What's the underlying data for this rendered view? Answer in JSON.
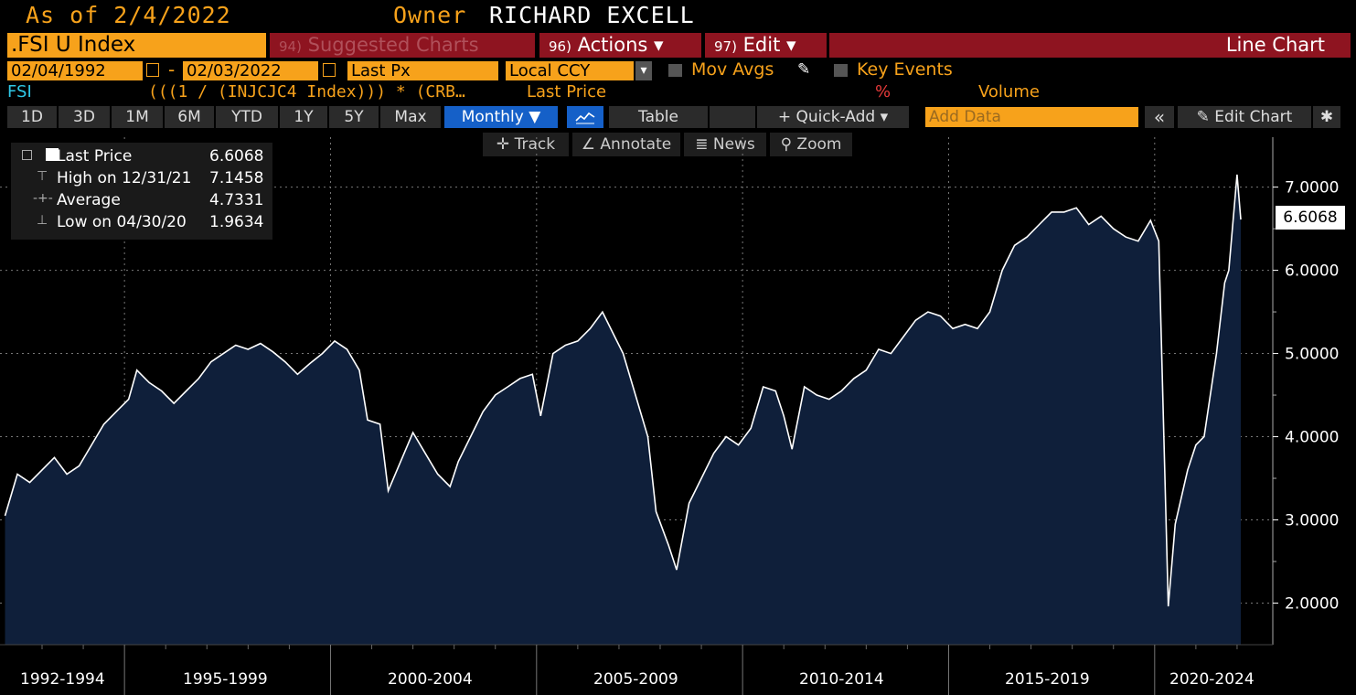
{
  "header": {
    "as_of": "As of 2/4/2022",
    "owner_label": "Owner",
    "owner_name": "RICHARD EXCELL"
  },
  "command_bar": {
    "ticker": ".FSI U Index",
    "suggested_num": "94)",
    "suggested_label": "Suggested Charts",
    "actions_num": "96)",
    "actions_label": "Actions ▾",
    "edit_num": "97)",
    "edit_label": "Edit ▾",
    "chart_type": "Line Chart"
  },
  "settings_row": {
    "start_date": "02/04/1992",
    "separator": "-",
    "end_date": "02/03/2022",
    "field": "Last Px",
    "currency": "Local CCY",
    "currency_dropdown": "▾",
    "mov_avgs": "Mov Avgs",
    "key_events": "Key Events"
  },
  "legend_row": {
    "security": "FSI",
    "formula": "(((1 / (INJCJC4 Index))) * (CRB…",
    "field": "Last Price",
    "pct": "%",
    "volume": "Volume"
  },
  "toolbar": {
    "periods": [
      "1D",
      "3D",
      "1M",
      "6M",
      "YTD",
      "1Y",
      "5Y",
      "Max"
    ],
    "frequency": "Monthly ▼",
    "table": "Table",
    "quick_add": "+ Quick-Add ▾",
    "add_data_placeholder": "Add Data",
    "collapse": "«",
    "edit_chart": "✎ Edit Chart",
    "settings": "✱"
  },
  "tools": {
    "track": "✛ Track",
    "annotate": "∠ Annotate",
    "news": "≣ News",
    "zoom": "⚲ Zoom"
  },
  "stats": {
    "last_label": "Last Price",
    "last_value": "6.6068",
    "high_label": "High on 12/31/21",
    "high_value": "7.1458",
    "avg_label": "Average",
    "avg_value": "4.7331",
    "low_label": "Low on 04/30/20",
    "low_value": "1.9634"
  },
  "colors": {
    "accent_orange": "#f7a21b",
    "bar_red": "#8e1420",
    "area_fill": "#0f1f3a",
    "line": "#ffffff"
  },
  "chart_data": {
    "type": "area",
    "y_range": [
      1.5,
      7.6
    ],
    "y_ticks": [
      "7.0000",
      "6.0000",
      "5.0000",
      "4.0000",
      "3.0000",
      "2.0000"
    ],
    "last_value_tag": "6.6068",
    "x_period_labels": [
      "1992-1994",
      "1995-1999",
      "2000-2004",
      "2005-2009",
      "2010-2014",
      "2015-2019",
      "2020-2024"
    ],
    "x_range": [
      1992.09,
      2022.09
    ],
    "grid": true,
    "series": [
      {
        "points": [
          [
            1992.1,
            3.05
          ],
          [
            1992.4,
            3.55
          ],
          [
            1992.7,
            3.45
          ],
          [
            1993.0,
            3.6
          ],
          [
            1993.3,
            3.75
          ],
          [
            1993.6,
            3.55
          ],
          [
            1993.9,
            3.65
          ],
          [
            1994.2,
            3.9
          ],
          [
            1994.5,
            4.15
          ],
          [
            1994.8,
            4.3
          ],
          [
            1995.1,
            4.45
          ],
          [
            1995.3,
            4.8
          ],
          [
            1995.6,
            4.65
          ],
          [
            1995.9,
            4.55
          ],
          [
            1996.2,
            4.4
          ],
          [
            1996.5,
            4.55
          ],
          [
            1996.8,
            4.7
          ],
          [
            1997.1,
            4.9
          ],
          [
            1997.4,
            5.0
          ],
          [
            1997.7,
            5.1
          ],
          [
            1998.0,
            5.05
          ],
          [
            1998.3,
            5.12
          ],
          [
            1998.6,
            5.02
          ],
          [
            1998.9,
            4.9
          ],
          [
            1999.2,
            4.75
          ],
          [
            1999.5,
            4.88
          ],
          [
            1999.8,
            5.0
          ],
          [
            2000.1,
            5.15
          ],
          [
            2000.4,
            5.05
          ],
          [
            2000.7,
            4.8
          ],
          [
            2000.9,
            4.2
          ],
          [
            2001.2,
            4.15
          ],
          [
            2001.4,
            3.35
          ],
          [
            2001.7,
            3.7
          ],
          [
            2002.0,
            4.05
          ],
          [
            2002.3,
            3.8
          ],
          [
            2002.6,
            3.55
          ],
          [
            2002.9,
            3.4
          ],
          [
            2003.1,
            3.7
          ],
          [
            2003.4,
            4.0
          ],
          [
            2003.7,
            4.3
          ],
          [
            2004.0,
            4.5
          ],
          [
            2004.3,
            4.6
          ],
          [
            2004.6,
            4.7
          ],
          [
            2004.9,
            4.75
          ],
          [
            2005.1,
            4.25
          ],
          [
            2005.4,
            5.0
          ],
          [
            2005.7,
            5.1
          ],
          [
            2006.0,
            5.15
          ],
          [
            2006.3,
            5.3
          ],
          [
            2006.6,
            5.5
          ],
          [
            2006.9,
            5.2
          ],
          [
            2007.1,
            5.0
          ],
          [
            2007.4,
            4.5
          ],
          [
            2007.7,
            4.0
          ],
          [
            2007.9,
            3.1
          ],
          [
            2008.2,
            2.7
          ],
          [
            2008.4,
            2.4
          ],
          [
            2008.7,
            3.2
          ],
          [
            2009.0,
            3.5
          ],
          [
            2009.3,
            3.8
          ],
          [
            2009.6,
            4.0
          ],
          [
            2009.9,
            3.9
          ],
          [
            2010.2,
            4.1
          ],
          [
            2010.5,
            4.6
          ],
          [
            2010.8,
            4.55
          ],
          [
            2011.0,
            4.25
          ],
          [
            2011.2,
            3.85
          ],
          [
            2011.5,
            4.6
          ],
          [
            2011.8,
            4.5
          ],
          [
            2012.1,
            4.45
          ],
          [
            2012.4,
            4.55
          ],
          [
            2012.7,
            4.7
          ],
          [
            2013.0,
            4.8
          ],
          [
            2013.3,
            5.05
          ],
          [
            2013.6,
            5.0
          ],
          [
            2013.9,
            5.2
          ],
          [
            2014.2,
            5.4
          ],
          [
            2014.5,
            5.5
          ],
          [
            2014.8,
            5.45
          ],
          [
            2015.1,
            5.3
          ],
          [
            2015.4,
            5.35
          ],
          [
            2015.7,
            5.3
          ],
          [
            2016.0,
            5.5
          ],
          [
            2016.3,
            6.0
          ],
          [
            2016.6,
            6.3
          ],
          [
            2016.9,
            6.4
          ],
          [
            2017.2,
            6.55
          ],
          [
            2017.5,
            6.7
          ],
          [
            2017.8,
            6.7
          ],
          [
            2018.1,
            6.75
          ],
          [
            2018.4,
            6.55
          ],
          [
            2018.7,
            6.65
          ],
          [
            2019.0,
            6.5
          ],
          [
            2019.3,
            6.4
          ],
          [
            2019.6,
            6.35
          ],
          [
            2019.9,
            6.6
          ],
          [
            2020.1,
            6.35
          ],
          [
            2020.33,
            1.96
          ],
          [
            2020.5,
            2.95
          ],
          [
            2020.8,
            3.6
          ],
          [
            2021.0,
            3.9
          ],
          [
            2021.2,
            4.0
          ],
          [
            2021.5,
            5.0
          ],
          [
            2021.7,
            5.85
          ],
          [
            2021.8,
            6.0
          ],
          [
            2022.0,
            7.15
          ],
          [
            2022.09,
            6.61
          ]
        ]
      }
    ]
  }
}
